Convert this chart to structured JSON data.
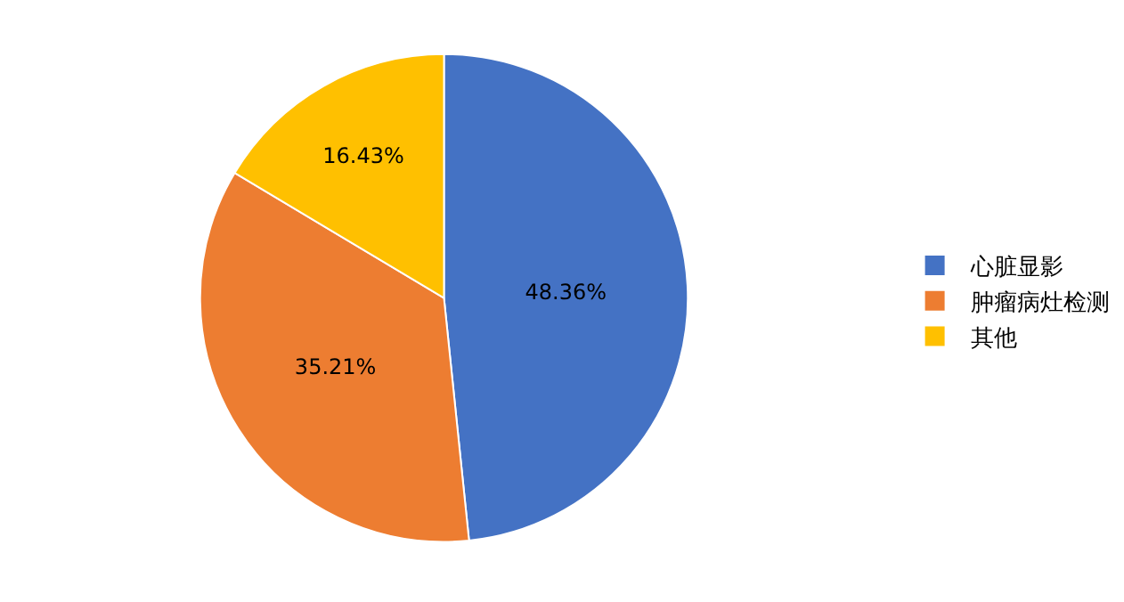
{
  "chart_data": {
    "type": "pie",
    "categories": [
      "心脏显影",
      "肿瘤病灶检测",
      "其他"
    ],
    "values": [
      48.36,
      35.21,
      16.43
    ],
    "value_labels": [
      "48.36%",
      "35.21%",
      "16.43%"
    ],
    "colors": [
      "#4472c4",
      "#ed7d31",
      "#ffc000"
    ],
    "legend": "right"
  }
}
